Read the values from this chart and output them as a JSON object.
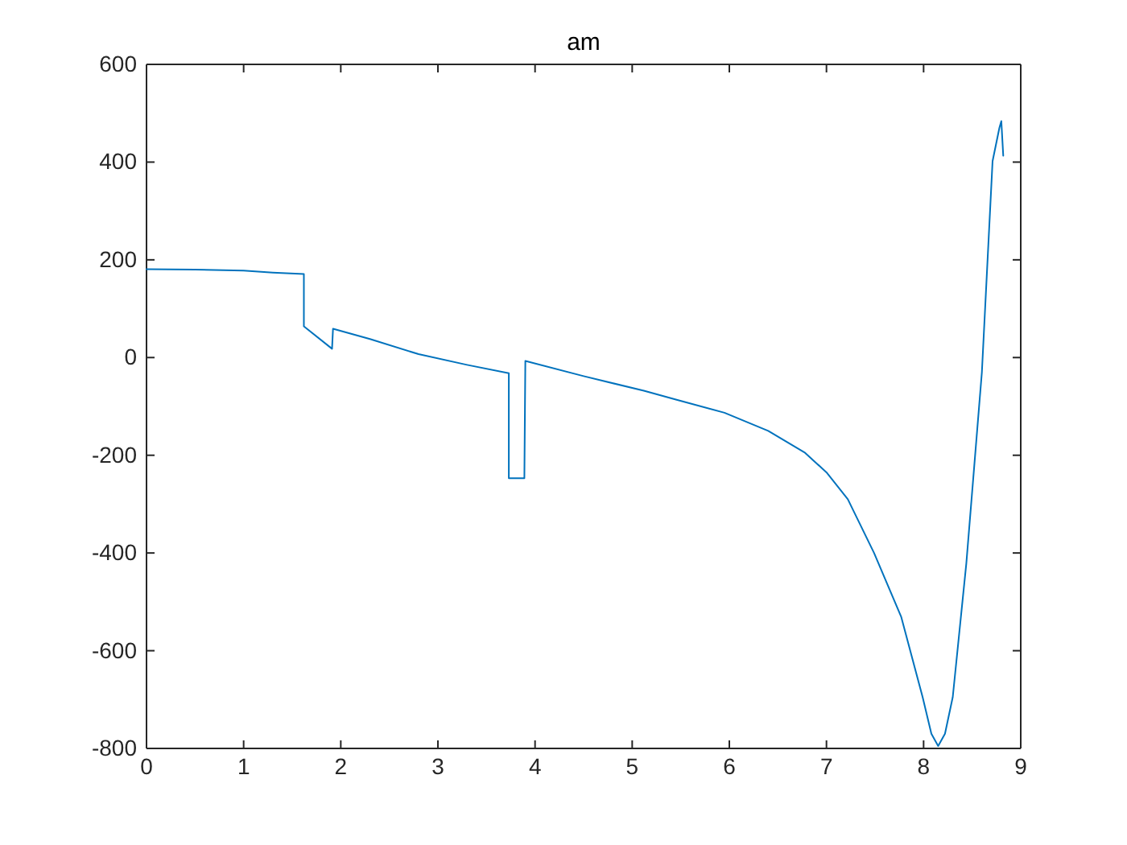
{
  "chart_data": {
    "type": "line",
    "title": "am",
    "x": [
      0,
      0.5,
      1,
      1.3,
      1.62,
      1.62,
      1.91,
      1.92,
      2.3,
      2.8,
      3.3,
      3.73,
      3.73,
      3.89,
      3.9,
      4.5,
      5.12,
      5.45,
      5.95,
      6.4,
      6.78,
      7.0,
      7.22,
      7.49,
      7.77,
      7.99,
      8.08,
      8.15,
      8.22,
      8.3,
      8.44,
      8.6,
      8.71,
      8.78,
      8.8,
      8.82
    ],
    "series": [
      {
        "color": "#0072bd",
        "values": [
          181,
          180,
          178,
          174,
          171,
          64,
          18,
          59,
          38,
          7,
          -15,
          -32,
          -247,
          -247,
          -7,
          -38,
          -68,
          -86,
          -113,
          -150,
          -195,
          -235,
          -290,
          -400,
          -531,
          -695,
          -770,
          -795,
          -770,
          -695,
          -421,
          -30,
          402,
          470,
          484,
          413
        ]
      }
    ],
    "xlim": [
      0,
      9
    ],
    "xticks": [
      0,
      1,
      2,
      3,
      4,
      5,
      6,
      7,
      8,
      9
    ],
    "ylim": [
      -800,
      600
    ],
    "yticks": [
      -800,
      -600,
      -400,
      -200,
      0,
      200,
      400,
      600
    ]
  }
}
